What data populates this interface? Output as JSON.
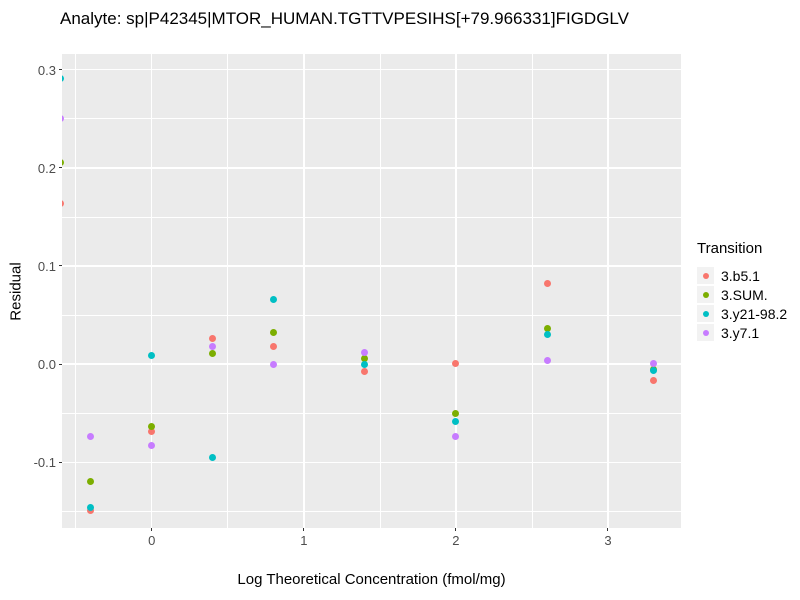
{
  "title": "Analyte: sp|P42345|MTOR_HUMAN.TGTTVPESIHS[+79.966331]FIGDGLV",
  "chart_data": {
    "type": "scatter",
    "title": "Analyte: sp|P42345|MTOR_HUMAN.TGTTVPESIHS[+79.966331]FIGDGLV",
    "xlabel": "Log Theoretical Concentration (fmol/mg)",
    "ylabel": "Residual",
    "xlim": [
      -0.59,
      3.48
    ],
    "ylim": [
      -0.167,
      0.316
    ],
    "grid": true,
    "panel_bg": "#EBEBEB",
    "grid_color": "#FFFFFF",
    "x_major_ticks": [
      0,
      1,
      2,
      3
    ],
    "x_tick_labels": [
      "0",
      "1",
      "2",
      "3"
    ],
    "x_minor_gridlines": [
      -0.5,
      0.5,
      1.5,
      2.5
    ],
    "y_major_ticks": [
      0.3,
      0.2,
      0.1,
      0.0,
      -0.1
    ],
    "y_tick_labels": [
      "0.3",
      "0.2",
      "0.1",
      "0.0",
      "-0.1"
    ],
    "y_minor_gridlines": [
      0.25,
      0.15,
      0.05,
      -0.05,
      -0.15
    ],
    "legend_title": "Transition",
    "legend_position": "right",
    "x": [
      -0.6,
      -0.4,
      0,
      0.4,
      0.8,
      1.4,
      2,
      2.6,
      3.3
    ],
    "series": [
      {
        "name": "3.b5.1",
        "color": "#F8766D",
        "values": [
          0.164,
          -0.149,
          -0.069,
          0.026,
          0.018,
          -0.008,
          0.001,
          0.082,
          -0.017
        ]
      },
      {
        "name": "3.SUM.",
        "color": "#7CAE00",
        "values": [
          0.205,
          -0.12,
          -0.064,
          0.011,
          0.032,
          0.006,
          -0.05,
          0.036,
          -0.005
        ]
      },
      {
        "name": "3.y21-98.2",
        "color": "#00BFC4",
        "values": [
          0.291,
          -0.146,
          0.009,
          -0.095,
          0.066,
          0.0,
          -0.058,
          0.03,
          -0.006
        ]
      },
      {
        "name": "3.y7.1",
        "color": "#C77CFF",
        "values": [
          0.25,
          -0.074,
          -0.083,
          0.018,
          0.0,
          0.012,
          -0.074,
          0.004,
          0.001
        ]
      }
    ]
  }
}
